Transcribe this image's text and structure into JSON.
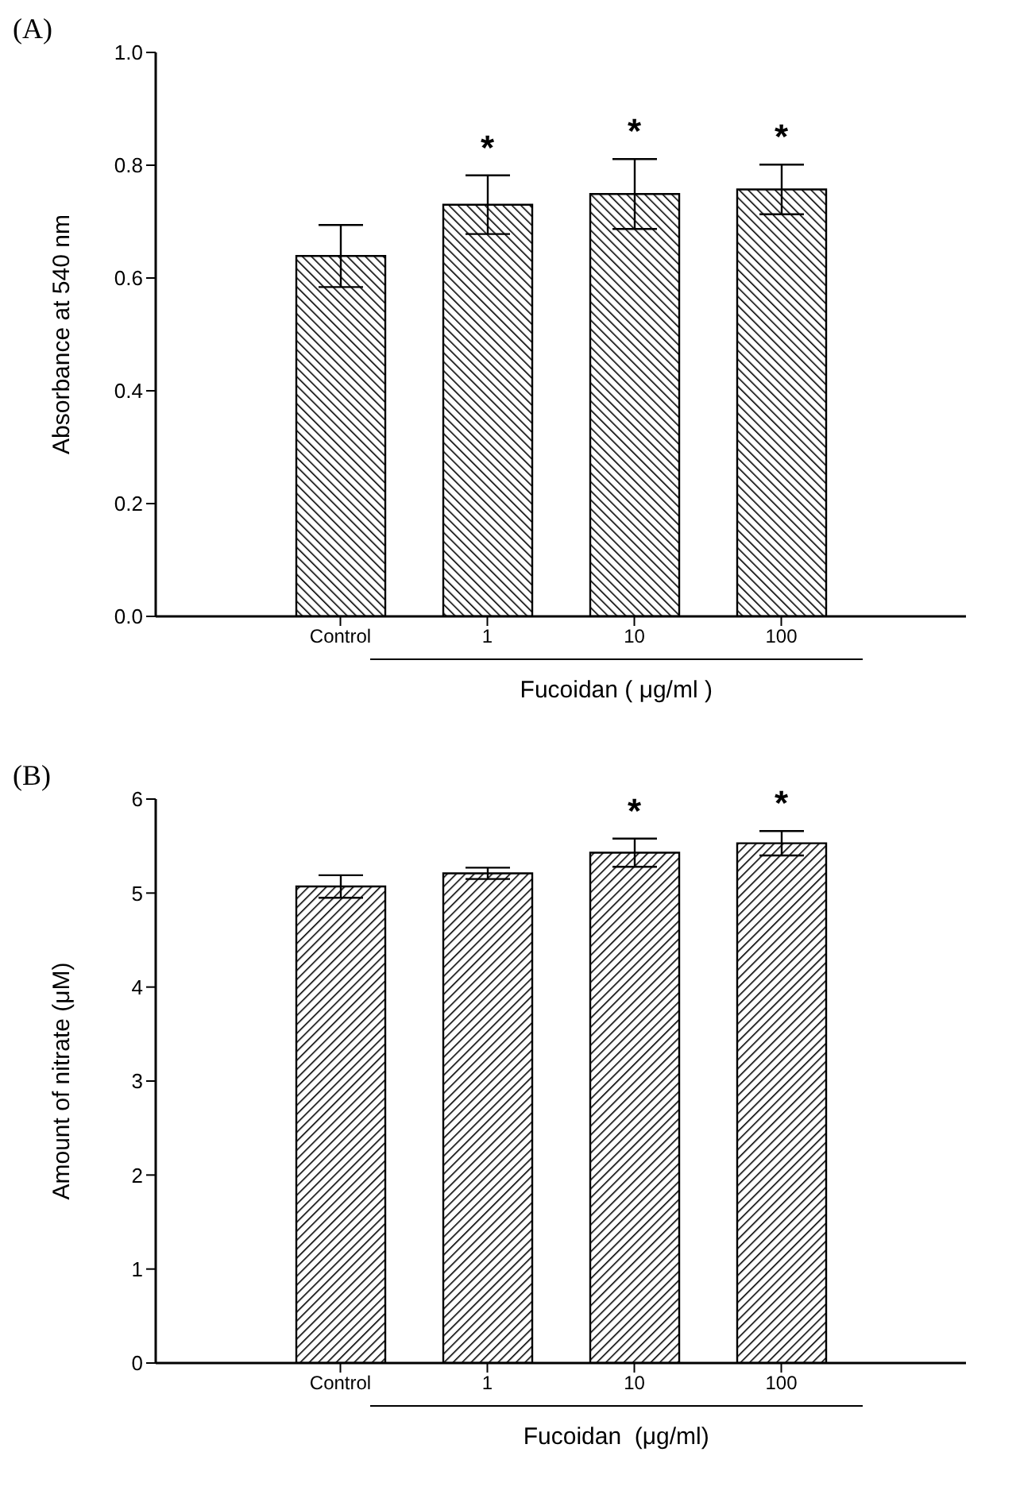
{
  "chart_data": [
    {
      "type": "bar",
      "title": "(A)",
      "ylabel": "Absorbance at 540 nm",
      "xlabel": "Fucoidan ( μg/ml )",
      "categories": [
        "Control",
        "1",
        "10",
        "100"
      ],
      "values": [
        0.639,
        0.73,
        0.749,
        0.757
      ],
      "errors": [
        0.055,
        0.052,
        0.062,
        0.044
      ],
      "color": "#000000",
      "ylim": [
        0,
        1
      ],
      "yticks": [
        {
          "value": 0,
          "label": "0.0"
        },
        {
          "value": 0.2,
          "label": "0.2"
        },
        {
          "value": 0.4,
          "label": "0.4"
        },
        {
          "value": 0.6,
          "label": "0.6"
        },
        {
          "value": 0.8,
          "label": "0.8"
        },
        {
          "value": 1,
          "label": "1.0"
        }
      ],
      "value_labels": [
        null,
        "*",
        "*",
        "*"
      ],
      "grid": false,
      "legend": false
    },
    {
      "type": "bar",
      "title": "(B)",
      "ylabel": "Amount of nitrate (μM)",
      "xlabel": "Fucoidan  (μg/ml)",
      "categories": [
        "Control",
        "1",
        "10",
        "100"
      ],
      "values": [
        5.07,
        5.21,
        5.43,
        5.53
      ],
      "errors": [
        0.12,
        0.06,
        0.15,
        0.13
      ],
      "color": "#000000",
      "ylim": [
        0,
        6
      ],
      "yticks": [
        0,
        1,
        2,
        3,
        4,
        5,
        6
      ],
      "value_labels": [
        null,
        null,
        "*",
        "*"
      ],
      "grid": false,
      "legend": false
    }
  ]
}
